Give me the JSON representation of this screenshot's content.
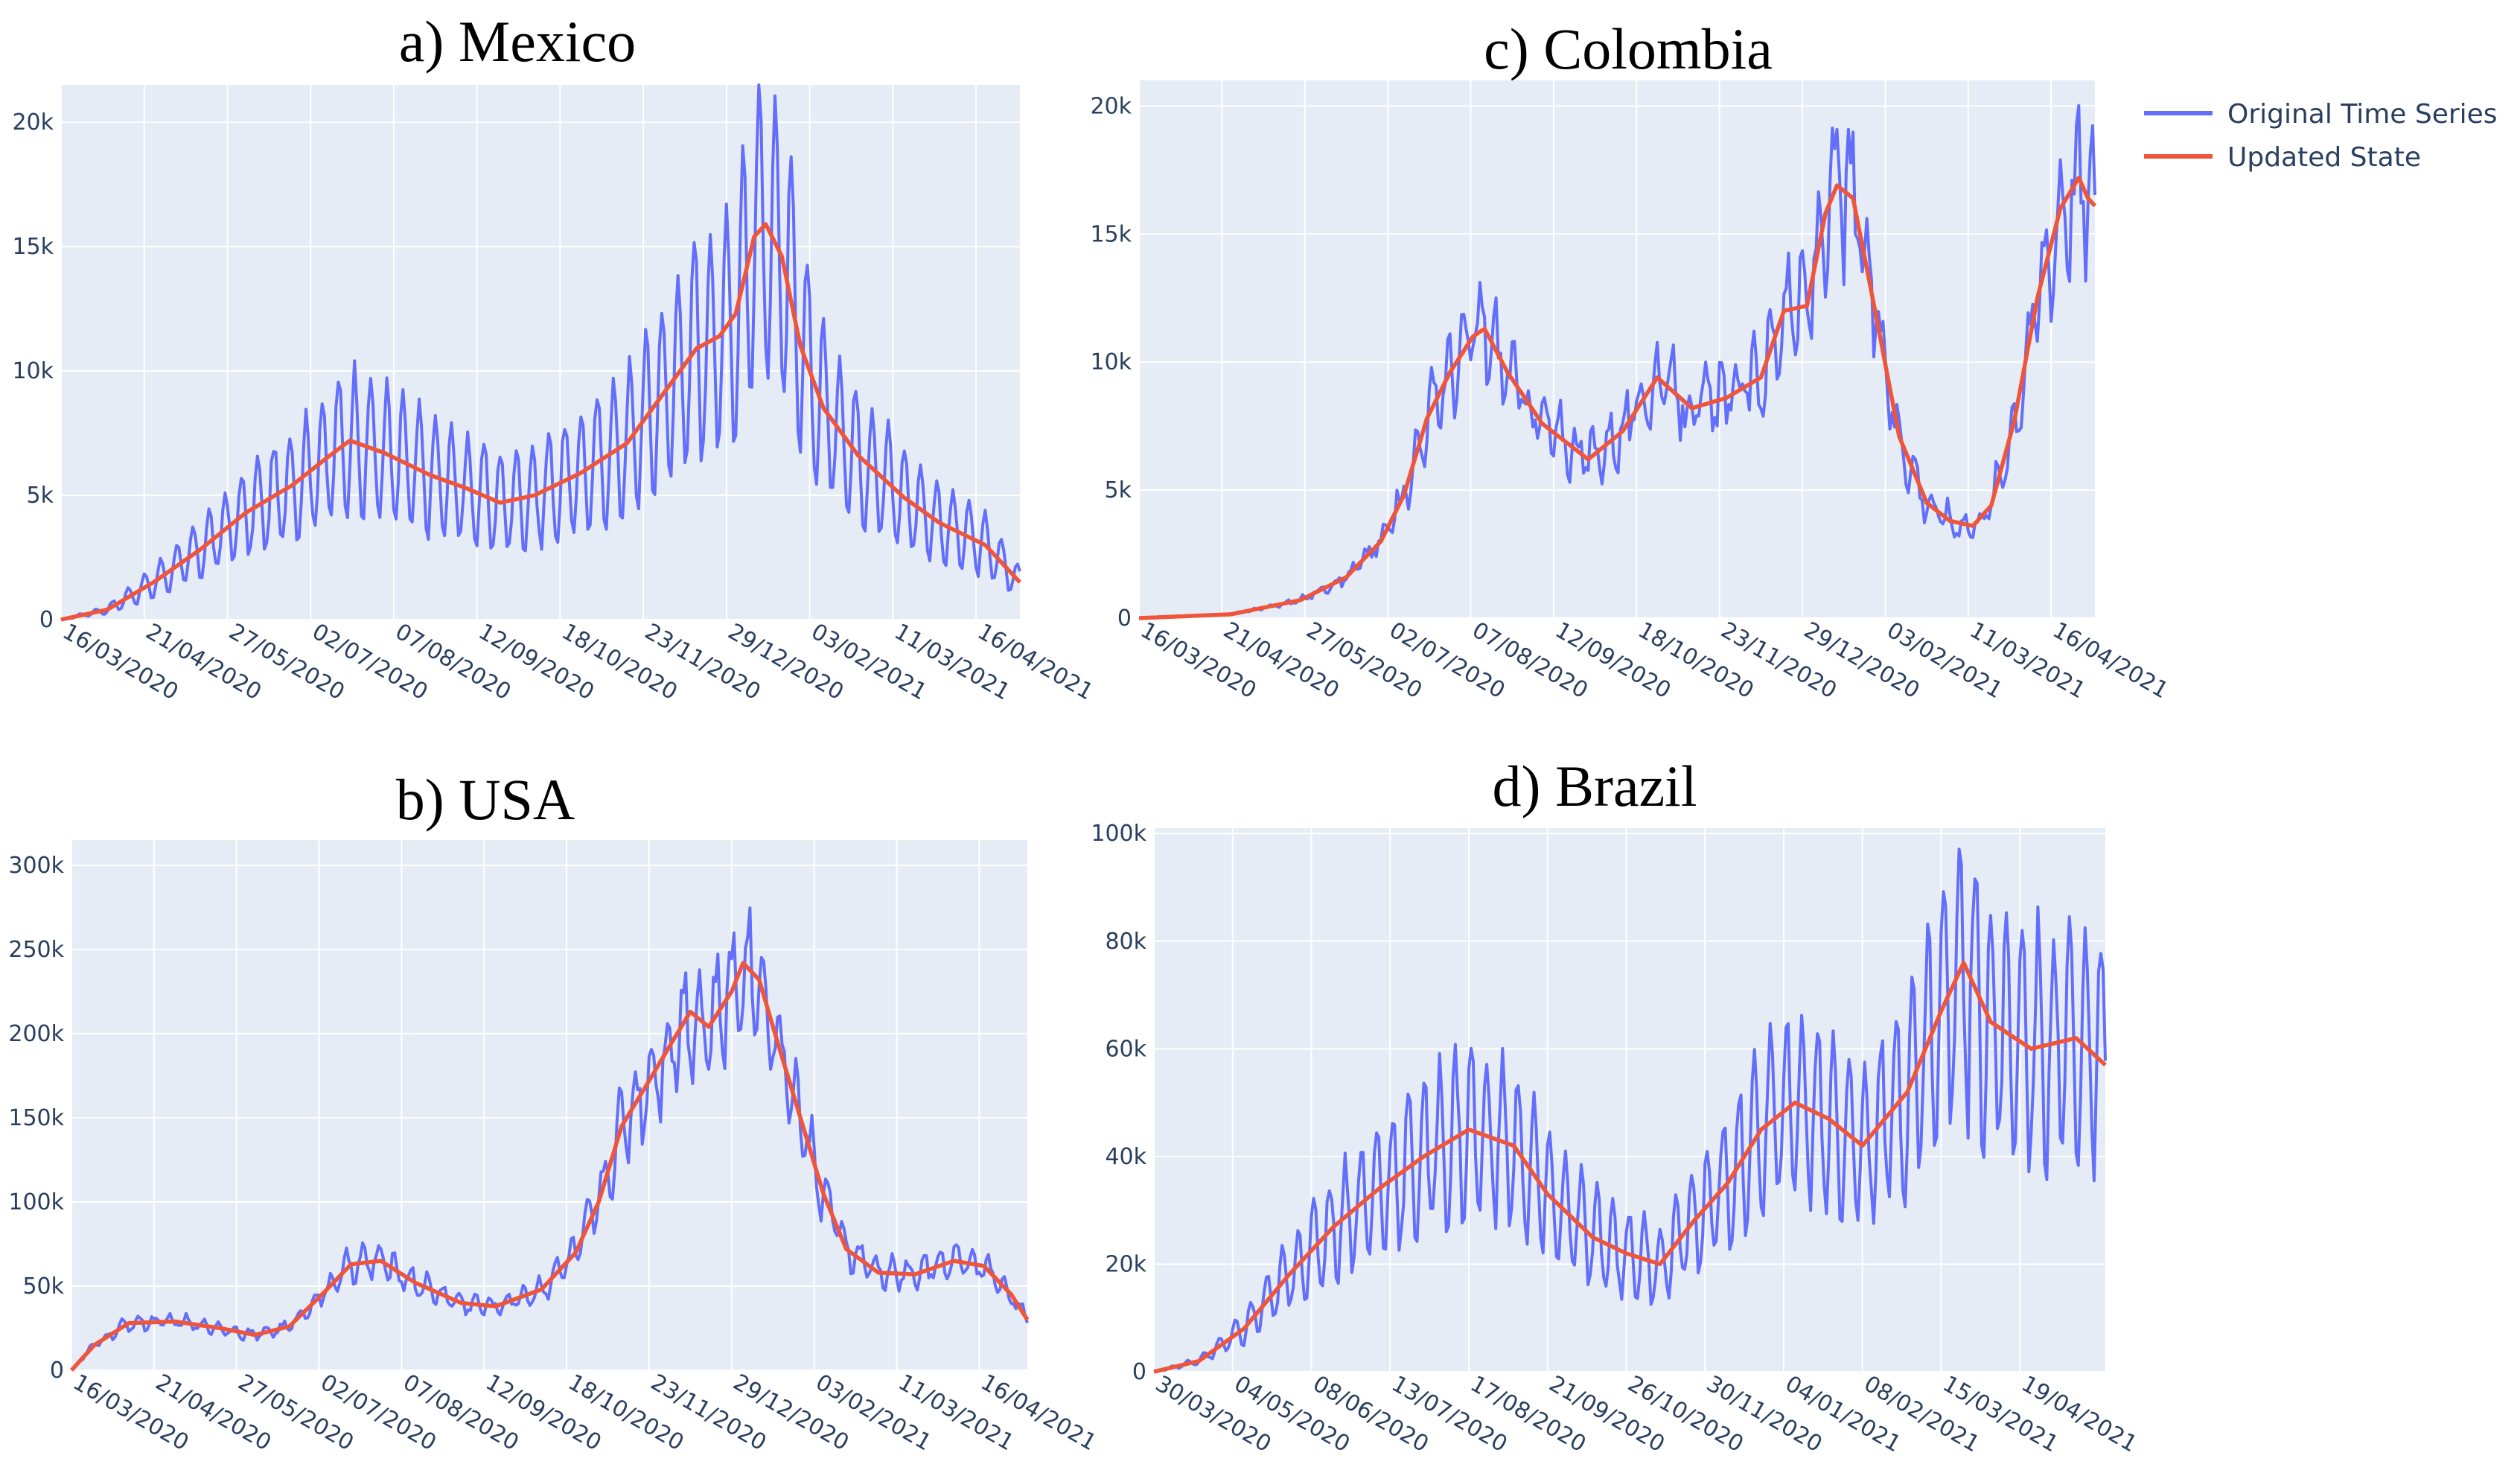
{
  "colors": {
    "background": "#ffffff",
    "plot_bg": "#e5ecf6",
    "grid": "#ffffff",
    "tick_text": "#2a3f5f",
    "original": "#636efa",
    "updated": "#ef553b"
  },
  "legend": {
    "placement": "top-right",
    "items": [
      {
        "label": "Original Time Series",
        "color": "#636efa"
      },
      {
        "label": "Updated State",
        "color": "#ef553b"
      }
    ]
  },
  "chart_data": [
    {
      "id": "mexico",
      "type": "line",
      "title": "a) Mexico",
      "xlabel": "",
      "ylabel": "",
      "days": 415,
      "ylim": [
        0,
        21500
      ],
      "yticks": [
        0,
        5000,
        10000,
        15000,
        20000
      ],
      "yticklabels": [
        "0",
        "5k",
        "10k",
        "15k",
        "20k"
      ],
      "xticklabels": [
        "16/03/2020",
        "21/04/2020",
        "27/05/2020",
        "02/07/2020",
        "07/08/2020",
        "12/09/2020",
        "18/10/2020",
        "23/11/2020",
        "29/12/2020",
        "03/02/2021",
        "11/03/2021",
        "16/04/2021"
      ],
      "xtick_step_days": 36,
      "grid": true,
      "series": [
        {
          "name": "Original Time Series",
          "weekly_amplitude": 0.42,
          "noise": 0.06
        },
        {
          "name": "Updated State",
          "anchors": [
            [
              0,
              0
            ],
            [
              20,
              400
            ],
            [
              40,
              1500
            ],
            [
              60,
              2800
            ],
            [
              80,
              4300
            ],
            [
              100,
              5400
            ],
            [
              115,
              6500
            ],
            [
              125,
              7200
            ],
            [
              140,
              6700
            ],
            [
              160,
              5800
            ],
            [
              175,
              5300
            ],
            [
              190,
              4700
            ],
            [
              205,
              5000
            ],
            [
              225,
              5900
            ],
            [
              245,
              7100
            ],
            [
              260,
              9000
            ],
            [
              275,
              10900
            ],
            [
              285,
              11400
            ],
            [
              292,
              12300
            ],
            [
              300,
              15400
            ],
            [
              305,
              15900
            ],
            [
              312,
              14600
            ],
            [
              320,
              11000
            ],
            [
              330,
              8500
            ],
            [
              345,
              6600
            ],
            [
              365,
              4900
            ],
            [
              380,
              3900
            ],
            [
              400,
              3000
            ],
            [
              415,
              1500
            ]
          ]
        }
      ]
    },
    {
      "id": "usa",
      "type": "line",
      "title": "b) USA",
      "xlabel": "",
      "ylabel": "",
      "days": 417,
      "ylim": [
        0,
        315000
      ],
      "yticks": [
        0,
        50000,
        100000,
        150000,
        200000,
        250000,
        300000
      ],
      "yticklabels": [
        "0",
        "50k",
        "100k",
        "150k",
        "200k",
        "250k",
        "300k"
      ],
      "xticklabels": [
        "16/03/2020",
        "21/04/2020",
        "27/05/2020",
        "02/07/2020",
        "07/08/2020",
        "12/09/2020",
        "18/10/2020",
        "23/11/2020",
        "29/12/2020",
        "03/02/2021",
        "11/03/2021",
        "16/04/2021"
      ],
      "xtick_step_days": 36,
      "grid": true,
      "series": [
        {
          "name": "Original Time Series",
          "weekly_amplitude": 0.14,
          "noise": 0.07
        },
        {
          "name": "Updated State",
          "anchors": [
            [
              0,
              0
            ],
            [
              10,
              15000
            ],
            [
              25,
              28000
            ],
            [
              45,
              29000
            ],
            [
              65,
              25000
            ],
            [
              80,
              21000
            ],
            [
              95,
              26000
            ],
            [
              110,
              46000
            ],
            [
              122,
              63000
            ],
            [
              135,
              65000
            ],
            [
              150,
              52000
            ],
            [
              170,
              40000
            ],
            [
              185,
              38000
            ],
            [
              205,
              48000
            ],
            [
              220,
              70000
            ],
            [
              230,
              100000
            ],
            [
              240,
              145000
            ],
            [
              252,
              172000
            ],
            [
              262,
              195000
            ],
            [
              270,
              213000
            ],
            [
              278,
              204000
            ],
            [
              288,
              225000
            ],
            [
              293,
              242000
            ],
            [
              300,
              232000
            ],
            [
              308,
              195000
            ],
            [
              318,
              150000
            ],
            [
              328,
              105000
            ],
            [
              338,
              72000
            ],
            [
              352,
              58000
            ],
            [
              368,
              57000
            ],
            [
              385,
              65000
            ],
            [
              398,
              62000
            ],
            [
              410,
              45000
            ],
            [
              417,
              30000
            ]
          ]
        }
      ]
    },
    {
      "id": "colombia",
      "type": "line",
      "title": "c) Colombia",
      "xlabel": "",
      "ylabel": "",
      "days": 415,
      "ylim": [
        0,
        21000
      ],
      "yticks": [
        0,
        5000,
        10000,
        15000,
        20000
      ],
      "yticklabels": [
        "0",
        "5k",
        "10k",
        "15k",
        "20k"
      ],
      "xticklabels": [
        "16/03/2020",
        "21/04/2020",
        "27/05/2020",
        "02/07/2020",
        "07/08/2020",
        "12/09/2020",
        "18/10/2020",
        "23/11/2020",
        "29/12/2020",
        "03/02/2021",
        "11/03/2021",
        "16/04/2021"
      ],
      "xtick_step_days": 36,
      "grid": true,
      "series": [
        {
          "name": "Original Time Series",
          "weekly_amplitude": 0.13,
          "noise": 0.1
        },
        {
          "name": "Updated State",
          "anchors": [
            [
              0,
              0
            ],
            [
              40,
              150
            ],
            [
              70,
              700
            ],
            [
              90,
              1600
            ],
            [
              105,
              3000
            ],
            [
              115,
              4800
            ],
            [
              125,
              7800
            ],
            [
              135,
              9600
            ],
            [
              145,
              11000
            ],
            [
              150,
              11300
            ],
            [
              160,
              9600
            ],
            [
              175,
              7600
            ],
            [
              195,
              6200
            ],
            [
              210,
              7300
            ],
            [
              225,
              9400
            ],
            [
              240,
              8200
            ],
            [
              255,
              8600
            ],
            [
              270,
              9400
            ],
            [
              280,
              12000
            ],
            [
              290,
              12200
            ],
            [
              298,
              15800
            ],
            [
              303,
              16900
            ],
            [
              310,
              16400
            ],
            [
              320,
              11800
            ],
            [
              330,
              7100
            ],
            [
              342,
              4500
            ],
            [
              352,
              3800
            ],
            [
              362,
              3600
            ],
            [
              370,
              4400
            ],
            [
              380,
              7700
            ],
            [
              390,
              12500
            ],
            [
              400,
              16000
            ],
            [
              408,
              17200
            ],
            [
              412,
              16400
            ],
            [
              415,
              16100
            ]
          ]
        }
      ]
    },
    {
      "id": "brazil",
      "type": "line",
      "title": "d) Brazil",
      "xlabel": "",
      "ylabel": "",
      "days": 423,
      "ylim": [
        0,
        101000
      ],
      "yticks": [
        0,
        20000,
        40000,
        60000,
        80000,
        100000
      ],
      "yticklabels": [
        "0",
        "20k",
        "40k",
        "60k",
        "80k",
        "100k"
      ],
      "xticklabels": [
        "30/03/2020",
        "04/05/2020",
        "08/06/2020",
        "13/07/2020",
        "17/08/2020",
        "21/09/2020",
        "26/10/2020",
        "30/11/2020",
        "04/01/2021",
        "08/02/2021",
        "15/03/2021",
        "19/04/2021"
      ],
      "xtick_step_days": 35,
      "grid": true,
      "series": [
        {
          "name": "Original Time Series",
          "weekly_amplitude": 0.36,
          "noise": 0.08
        },
        {
          "name": "Updated State",
          "anchors": [
            [
              0,
              0
            ],
            [
              20,
              2000
            ],
            [
              40,
              8000
            ],
            [
              60,
              18000
            ],
            [
              80,
              27000
            ],
            [
              100,
              34000
            ],
            [
              120,
              40000
            ],
            [
              140,
              45000
            ],
            [
              160,
              42000
            ],
            [
              175,
              33000
            ],
            [
              195,
              25000
            ],
            [
              210,
              22000
            ],
            [
              225,
              20000
            ],
            [
              240,
              28000
            ],
            [
              255,
              35000
            ],
            [
              270,
              45000
            ],
            [
              285,
              50000
            ],
            [
              300,
              47000
            ],
            [
              315,
              42000
            ],
            [
              335,
              52000
            ],
            [
              350,
              67000
            ],
            [
              360,
              76000
            ],
            [
              372,
              65000
            ],
            [
              390,
              60000
            ],
            [
              410,
              62000
            ],
            [
              423,
              57000
            ]
          ]
        }
      ]
    }
  ]
}
